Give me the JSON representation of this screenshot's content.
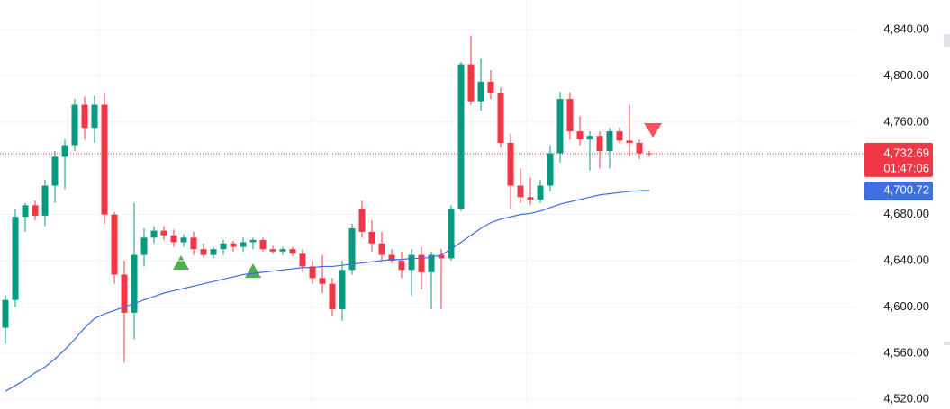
{
  "chart_data": {
    "type": "candlestick",
    "up_color": "#089981",
    "down_color": "#f23645",
    "open": [
      4582,
      4606,
      4678,
      4688,
      4679,
      4705,
      4730,
      4740,
      4775,
      4755,
      4775,
      4680,
      4628,
      4595,
      4645,
      4660,
      4666,
      4662,
      4656,
      4660,
      4650,
      4645,
      4650,
      4655,
      4652,
      4656,
      4658,
      4650,
      4648,
      4650,
      4646,
      4635,
      4625,
      4620,
      4598,
      4632,
      4685,
      4665,
      4655,
      4645,
      4640,
      4632,
      4645,
      4630,
      4645,
      4642,
      4685,
      4810,
      4778,
      4795,
      4785,
      4742,
      4705,
      4695,
      4693,
      4705,
      4733,
      4780,
      4752,
      4745,
      4748,
      4735,
      4752,
      4744,
      4742,
      4733
    ],
    "high": [
      4610,
      4685,
      4690,
      4692,
      4710,
      4735,
      4745,
      4780,
      4782,
      4783,
      4785,
      4682,
      4640,
      4690,
      4668,
      4670,
      4670,
      4667,
      4663,
      4665,
      4655,
      4652,
      4658,
      4657,
      4660,
      4660,
      4660,
      4653,
      4652,
      4652,
      4650,
      4640,
      4645,
      4625,
      4640,
      4672,
      4692,
      4675,
      4665,
      4650,
      4648,
      4650,
      4652,
      4648,
      4650,
      4688,
      4812,
      4835,
      4815,
      4805,
      4790,
      4750,
      4720,
      4712,
      4710,
      4740,
      4786,
      4786,
      4765,
      4752,
      4752,
      4755,
      4755,
      4775,
      4745,
      4735
    ],
    "low": [
      4568,
      4600,
      4665,
      4675,
      4670,
      4690,
      4702,
      4735,
      4745,
      4742,
      4672,
      4620,
      4552,
      4572,
      4635,
      4655,
      4658,
      4652,
      4652,
      4645,
      4643,
      4642,
      4645,
      4648,
      4648,
      4650,
      4648,
      4646,
      4645,
      4644,
      4630,
      4620,
      4612,
      4592,
      4588,
      4628,
      4660,
      4648,
      4640,
      4638,
      4625,
      4610,
      4615,
      4598,
      4598,
      4640,
      4683,
      4775,
      4770,
      4780,
      4738,
      4685,
      4690,
      4688,
      4690,
      4700,
      4725,
      4745,
      4740,
      4718,
      4720,
      4720,
      4742,
      4730,
      4728,
      4730
    ],
    "close": [
      4606,
      4678,
      4688,
      4679,
      4705,
      4730,
      4740,
      4775,
      4755,
      4775,
      4680,
      4628,
      4595,
      4645,
      4660,
      4666,
      4662,
      4656,
      4660,
      4650,
      4645,
      4650,
      4655,
      4652,
      4656,
      4658,
      4650,
      4648,
      4650,
      4646,
      4635,
      4625,
      4620,
      4598,
      4632,
      4668,
      4665,
      4655,
      4645,
      4640,
      4632,
      4645,
      4630,
      4645,
      4642,
      4685,
      4810,
      4778,
      4795,
      4785,
      4742,
      4705,
      4695,
      4693,
      4705,
      4733,
      4780,
      4752,
      4745,
      4748,
      4735,
      4752,
      4744,
      4742,
      4733,
      4732.69
    ],
    "ma": {
      "color": "#3d6fe0",
      "values": [
        4527,
        4532,
        4537,
        4543,
        4548,
        4555,
        4563,
        4572,
        4582,
        4590,
        4594,
        4597,
        4600,
        4603,
        4606,
        4609,
        4612,
        4614,
        4616,
        4618,
        4620,
        4622,
        4624,
        4626,
        4628,
        4629,
        4630,
        4631,
        4632,
        4633,
        4634,
        4634,
        4635,
        4635,
        4636,
        4637,
        4638,
        4639,
        4640,
        4641,
        4641,
        4642,
        4642,
        4643,
        4645,
        4650,
        4656,
        4662,
        4668,
        4673,
        4676,
        4678,
        4680,
        4681,
        4683,
        4686,
        4689,
        4691,
        4693,
        4695,
        4697,
        4698,
        4699,
        4700,
        4700.5,
        4700.72
      ]
    },
    "ylim": [
      4515.5,
      4865.7
    ],
    "yticks": [
      {
        "value": 4520,
        "label": "4,520.00"
      },
      {
        "value": 4560,
        "label": "4,560.00"
      },
      {
        "value": 4600,
        "label": "4,600.00"
      },
      {
        "value": 4640,
        "label": "4,640.00"
      },
      {
        "value": 4680,
        "label": "4,680.00"
      },
      {
        "value": 4760,
        "label": "4,760.00"
      },
      {
        "value": 4800,
        "label": "4,800.00"
      },
      {
        "value": 4840,
        "label": "4,840.00"
      }
    ],
    "grid": true,
    "last_price": {
      "value": 4732.69,
      "label": "4,732.69"
    },
    "countdown": "01:47:06",
    "ma_last": {
      "value": 4700.72,
      "label": "4,700.72"
    }
  }
}
